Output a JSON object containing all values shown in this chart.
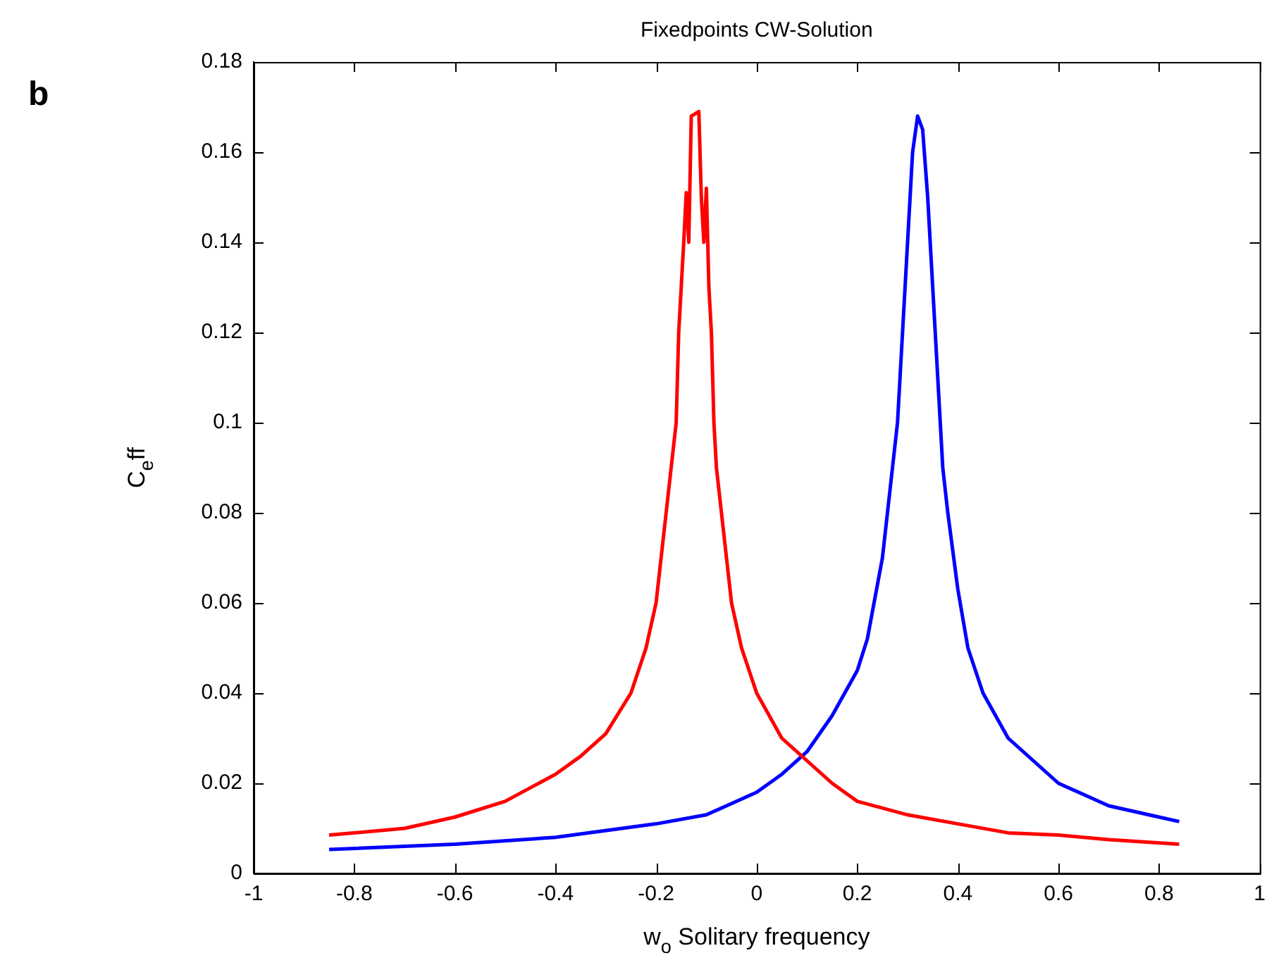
{
  "chart_data": {
    "type": "line",
    "title": "Fixedpoints CW-Solution",
    "xlabel": "w$_{o}$ Solitary frequency",
    "ylabel": "C$_{e}$ff",
    "annotations": [
      "b"
    ],
    "xlim": [
      -1,
      1
    ],
    "xticks": [
      -1,
      -0.8,
      -0.6,
      -0.4,
      -0.2,
      0,
      0.2,
      0.4,
      0.6,
      0.8,
      1
    ],
    "ylim": [
      0,
      0.18
    ],
    "yticks": [
      0,
      0.02,
      0.04,
      0.06,
      0.08,
      0.1,
      0.12,
      0.14,
      0.16,
      0.18
    ],
    "grid": false,
    "legend": false,
    "marker": "none",
    "line_style": "solid",
    "series": [
      {
        "color": "#ff0000",
        "x": [
          -0.85,
          -0.7,
          -0.6,
          -0.5,
          -0.4,
          -0.35,
          -0.3,
          -0.25,
          -0.22,
          -0.2,
          -0.18,
          -0.17,
          -0.16,
          -0.155,
          -0.15,
          -0.145,
          -0.14,
          -0.135,
          -0.13,
          -0.115,
          -0.11,
          -0.105,
          -0.1,
          -0.095,
          -0.09,
          -0.085,
          -0.08,
          -0.07,
          -0.05,
          -0.03,
          0,
          0.05,
          0.1,
          0.15,
          0.2,
          0.3,
          0.4,
          0.5,
          0.6,
          0.7,
          0.84
        ],
        "values": [
          0.0085,
          0.01,
          0.0125,
          0.016,
          0.022,
          0.026,
          0.031,
          0.04,
          0.05,
          0.06,
          0.08,
          0.09,
          0.1,
          0.12,
          0.13,
          0.14,
          0.151,
          0.14,
          0.168,
          0.169,
          0.15,
          0.14,
          0.152,
          0.13,
          0.12,
          0.1,
          0.09,
          0.08,
          0.06,
          0.05,
          0.04,
          0.03,
          0.025,
          0.02,
          0.016,
          0.013,
          0.011,
          0.009,
          0.0085,
          0.0075,
          0.0065
        ]
      },
      {
        "color": "#0000ff",
        "x": [
          -0.85,
          -0.6,
          -0.4,
          -0.2,
          -0.1,
          0,
          0.05,
          0.1,
          0.15,
          0.2,
          0.22,
          0.25,
          0.27,
          0.28,
          0.29,
          0.3,
          0.31,
          0.32,
          0.33,
          0.34,
          0.35,
          0.36,
          0.37,
          0.38,
          0.4,
          0.42,
          0.45,
          0.5,
          0.55,
          0.6,
          0.7,
          0.8,
          0.84
        ],
        "values": [
          0.0053,
          0.0065,
          0.008,
          0.011,
          0.013,
          0.018,
          0.022,
          0.027,
          0.035,
          0.045,
          0.052,
          0.07,
          0.09,
          0.1,
          0.12,
          0.14,
          0.16,
          0.168,
          0.165,
          0.15,
          0.13,
          0.11,
          0.09,
          0.08,
          0.063,
          0.05,
          0.04,
          0.03,
          0.025,
          0.02,
          0.015,
          0.0125,
          0.0115
        ]
      }
    ]
  }
}
